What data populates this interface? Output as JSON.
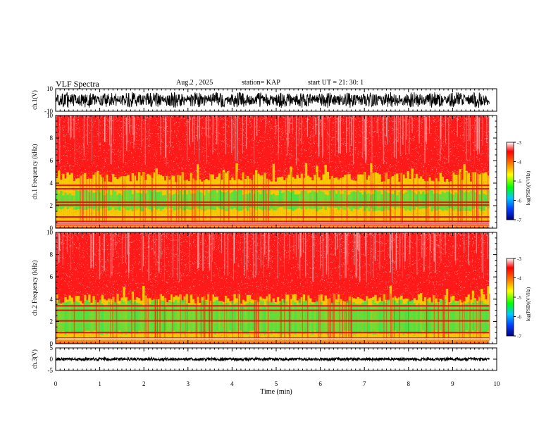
{
  "header": {
    "title": "VLF Spectra",
    "date": "Aug.2 , 2025",
    "station": "station= KAP",
    "start_ut": "start UT = 21: 30: 1"
  },
  "colors": {
    "background": "#ffffff",
    "spectrogram_bg": "#ff1a1a",
    "trace": "#000000"
  },
  "chart_data": [
    {
      "type": "line",
      "panel": "ch1-waveform",
      "ylabel": "ch.1(V)",
      "ylim": [
        -10,
        10
      ],
      "y_ticks": [
        "10",
        "-10"
      ],
      "xlim": [
        0,
        10
      ],
      "x_end_min": 9.83,
      "signal_range_v": [
        -7,
        7
      ]
    },
    {
      "type": "heatmap",
      "panel": "ch1-spectrogram",
      "ylabel": "ch.1 Frequency (kHz)",
      "ylim": [
        0,
        10
      ],
      "y_ticks": [
        "0",
        "2",
        "4",
        "6",
        "8",
        "10"
      ],
      "xlim": [
        0,
        10
      ],
      "x_end_min": 9.83,
      "green_band_khz": [
        1.5,
        3.5
      ],
      "yellow_band_khz": [
        0.5,
        5
      ],
      "red_lines_khz": [
        0.6,
        1.0,
        2.05,
        2.3,
        3.5,
        3.8
      ]
    },
    {
      "type": "heatmap",
      "panel": "ch2-spectrogram",
      "ylabel": "ch.2 Frequency (kHz)",
      "ylim": [
        0,
        10
      ],
      "y_ticks": [
        "0",
        "2",
        "4",
        "6",
        "8",
        "10"
      ],
      "xlim": [
        0,
        10
      ],
      "x_end_min": 9.83,
      "green_band_khz": [
        0.8,
        4
      ],
      "yellow_band_khz": [
        0.3,
        4.5
      ],
      "red_lines_khz": [
        0.5,
        1.0,
        2.05,
        3.0,
        3.4
      ]
    },
    {
      "type": "line",
      "panel": "ch3-waveform",
      "ylabel": "ch.3(V)",
      "ylim": [
        -5,
        5
      ],
      "y_ticks": [
        "5",
        "0",
        "-5"
      ],
      "xlim": [
        0,
        10
      ],
      "x_end_min": 9.83,
      "signal_range_v": [
        -0.6,
        0.6
      ]
    }
  ],
  "colorbar": {
    "label": "log(PSD)(V²/Hz)",
    "range": [
      -7,
      -3
    ],
    "tick_labels": [
      "-3",
      "-4",
      "-5",
      "-6",
      "-7"
    ],
    "tick_values": [
      -3,
      -4,
      -5,
      -6,
      -7
    ]
  },
  "x_axis": {
    "label": "Time (min)",
    "tick_labels": [
      "0",
      "1",
      "2",
      "3",
      "4",
      "5",
      "6",
      "7",
      "8",
      "9",
      "10"
    ]
  }
}
